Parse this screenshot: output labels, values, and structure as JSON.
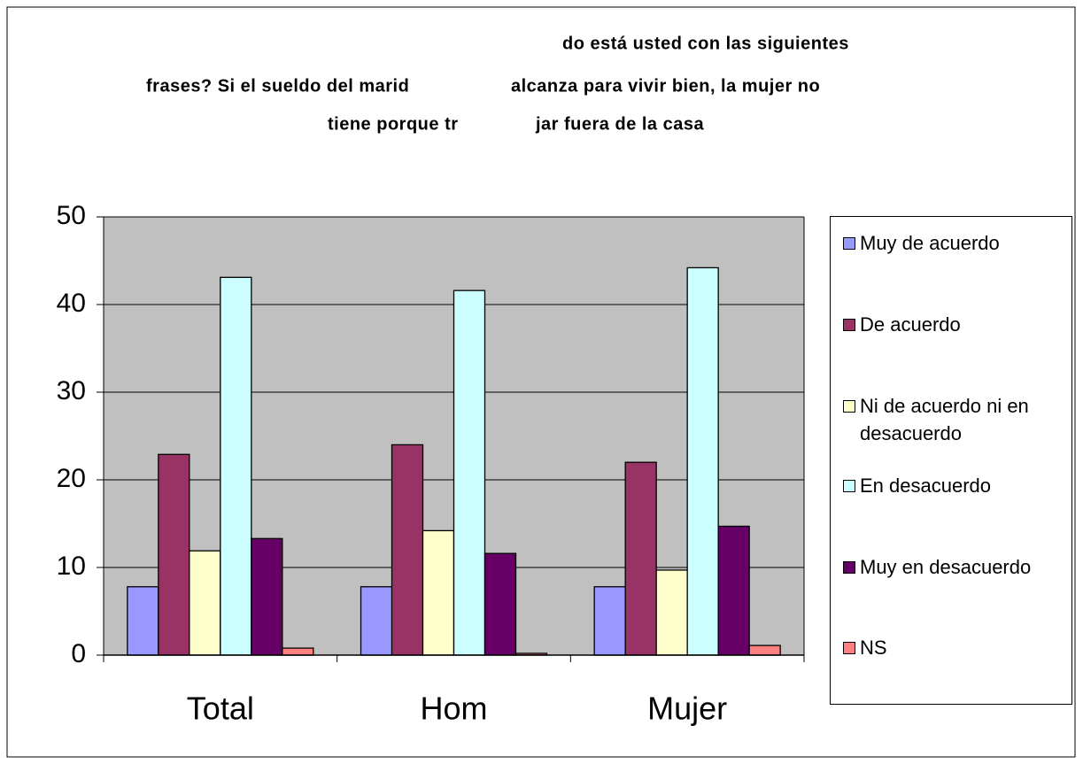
{
  "chart_data": {
    "type": "bar",
    "title": [
      [
        "do está usted con las siguientes"
      ],
      [
        "frases? Si el sueldo del marid",
        "alcanza para vivir bien, la mujer no"
      ],
      [
        "tiene porque tr",
        "jar fuera de la casa"
      ]
    ],
    "categories": [
      "Total",
      "Hom",
      "Mujer"
    ],
    "series": [
      {
        "name": "Muy de acuerdo",
        "color": "#9999ff",
        "values": [
          7.8,
          7.8,
          7.8
        ]
      },
      {
        "name": "De acuerdo",
        "color": "#993366",
        "values": [
          22.9,
          24.0,
          22.0
        ]
      },
      {
        "name": "Ni de acuerdo ni en desacuerdo",
        "color": "#ffffcc",
        "values": [
          11.9,
          14.2,
          9.7
        ]
      },
      {
        "name": "En desacuerdo",
        "color": "#ccffff",
        "values": [
          43.1,
          41.6,
          44.2
        ]
      },
      {
        "name": "Muy en desacuerdo",
        "color": "#660066",
        "values": [
          13.3,
          11.6,
          14.7
        ]
      },
      {
        "name": "NS",
        "color": "#ff8080",
        "values": [
          0.8,
          0.2,
          1.1
        ]
      }
    ],
    "ylim": [
      0,
      50
    ],
    "yticks": [
      0,
      10,
      20,
      30,
      40,
      50
    ],
    "grid": true,
    "legend": "right"
  }
}
